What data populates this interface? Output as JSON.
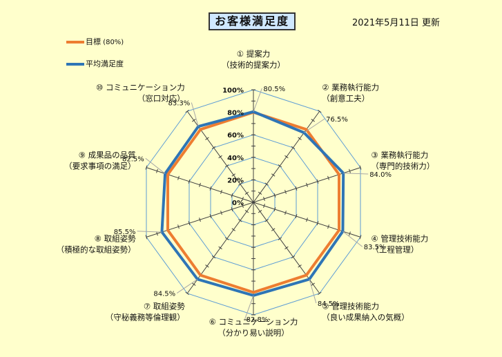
{
  "header": {
    "title": "お客様満足度",
    "updated": "2021年5月11日 更新"
  },
  "colors": {
    "target": "#ed7d31",
    "average": "#2e75b6",
    "grid": "#5b9bd5",
    "axis": "#404040",
    "leader": "#a6a6a6"
  },
  "chart_data": {
    "type": "radar",
    "categories": [
      [
        "① 提案力",
        "（技術的提案力）"
      ],
      [
        "② 業務執行能力",
        "（創意工夫）"
      ],
      [
        "③ 業務執行能力",
        "（専門的技術力）"
      ],
      [
        "④ 管理技術能力",
        "（工程管理）"
      ],
      [
        "⑤ 管理技術能力",
        "（良い成果納入の気概）"
      ],
      [
        "⑥ コミュニケーション力",
        "（分かり易い説明）"
      ],
      [
        "⑦ 取組姿勢",
        "（守秘義務等倫理観）"
      ],
      [
        "⑧ 取組姿勢",
        "（積極的な取組姿勢）"
      ],
      [
        "⑨ 成果品の品質",
        "（要求事項の満足）"
      ],
      [
        "⑩ コミュニケーション力",
        "（窓口対応）"
      ]
    ],
    "series": [
      {
        "name": "目標",
        "name_suffix": " (80%)",
        "color": "#ed7d31",
        "values": [
          80,
          80,
          80,
          80,
          80,
          80,
          80,
          80,
          80,
          80
        ]
      },
      {
        "name": "平均満足度",
        "color": "#2e75b6",
        "values": [
          80.5,
          76.5,
          84.0,
          83.5,
          84.5,
          82.8,
          84.5,
          85.5,
          82.5,
          83.3
        ]
      }
    ],
    "value_labels": [
      "80.5%",
      "76.5%",
      "84.0%",
      "83.5%",
      "84.5%",
      "82.8%",
      "84.5%",
      "85.5%",
      "82.5%",
      "83.3%"
    ],
    "ticks": [
      "0%",
      "20%",
      "40%",
      "60%",
      "80%",
      "100%"
    ],
    "rlim": [
      0,
      100
    ]
  }
}
